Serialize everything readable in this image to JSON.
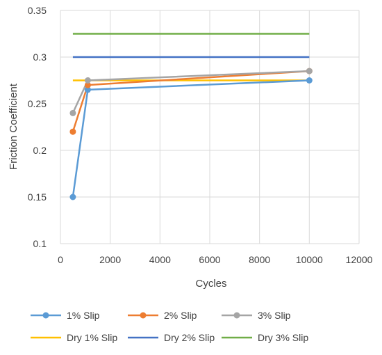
{
  "chart_data": {
    "type": "scatter",
    "title": "",
    "xlabel": "Cycles",
    "ylabel": "Friction Coefficient",
    "xlim": [
      0,
      12000
    ],
    "ylim": [
      0.1,
      0.35
    ],
    "xticks": [
      0,
      2000,
      4000,
      6000,
      8000,
      10000,
      12000
    ],
    "yticks": [
      0.1,
      0.15,
      0.2,
      0.25,
      0.3,
      0.35
    ],
    "xtick_labels": [
      "0",
      "2000",
      "4000",
      "6000",
      "8000",
      "10000",
      "12000"
    ],
    "ytick_labels": [
      "0.1",
      "0.15",
      "0.2",
      "0.25",
      "0.3",
      "0.35"
    ],
    "grid": true,
    "legend_position": "bottom",
    "series": [
      {
        "name": "1% Slip",
        "color": "#5B9BD5",
        "markers": true,
        "x": [
          500,
          1100,
          10000
        ],
        "y": [
          0.15,
          0.265,
          0.275
        ]
      },
      {
        "name": "2% Slip",
        "color": "#ED7D31",
        "markers": true,
        "x": [
          500,
          1100,
          10000
        ],
        "y": [
          0.22,
          0.27,
          0.285
        ]
      },
      {
        "name": "3% Slip",
        "color": "#A5A5A5",
        "markers": true,
        "x": [
          500,
          1100,
          10000
        ],
        "y": [
          0.24,
          0.275,
          0.285
        ]
      },
      {
        "name": "Dry 1% Slip",
        "color": "#FFC000",
        "markers": false,
        "x": [
          500,
          10000
        ],
        "y": [
          0.275,
          0.275
        ]
      },
      {
        "name": "Dry 2% Slip",
        "color": "#4472C4",
        "markers": false,
        "x": [
          500,
          10000
        ],
        "y": [
          0.3,
          0.3
        ]
      },
      {
        "name": "Dry 3% Slip",
        "color": "#70AD47",
        "markers": false,
        "x": [
          500,
          10000
        ],
        "y": [
          0.325,
          0.325
        ]
      }
    ]
  }
}
